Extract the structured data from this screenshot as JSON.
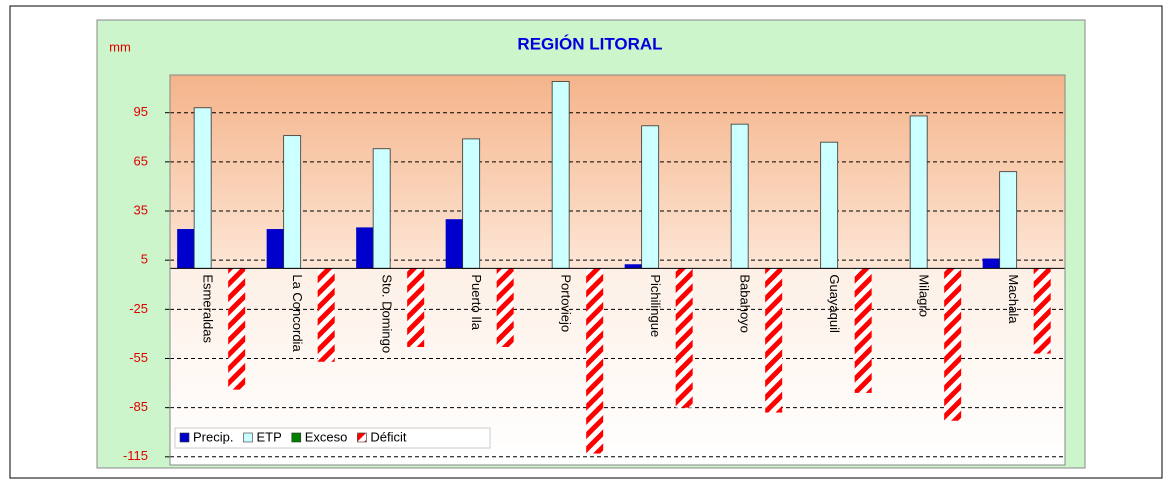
{
  "chart_data": {
    "type": "bar",
    "title": "REGIÓN LITORAL",
    "y_label": "mm",
    "categories": [
      "Esmeraldas",
      "La Concordia",
      "Sto. Domingo",
      "Puerto Ila",
      "Portoviejo",
      "Pichilingue",
      "Babahoyo",
      "Guayaquil",
      "Milagro",
      "Machala"
    ],
    "series": [
      {
        "name": "Precip.",
        "color": "#0000cc",
        "values": [
          24,
          24,
          25,
          30,
          0,
          2.5,
          0,
          0,
          0,
          6
        ]
      },
      {
        "name": "ETP",
        "color": "#ccffff",
        "values": [
          98,
          81,
          73,
          79,
          114,
          87,
          88,
          77,
          93,
          59
        ]
      },
      {
        "name": "Exceso",
        "color": "#008000",
        "values": [
          0,
          0,
          0,
          0,
          0,
          0,
          0,
          0,
          0,
          0
        ]
      },
      {
        "name": "Déficit",
        "color": "#ff0000",
        "values": [
          -74,
          -57,
          -48,
          -48,
          -113,
          -85,
          -88,
          -76,
          -93,
          -52
        ]
      }
    ],
    "ylim": [
      -120,
      118
    ],
    "yticks": [
      95,
      65,
      35,
      5,
      -25,
      -55,
      -85,
      -115
    ],
    "grid": true,
    "legend": "bottom-left"
  }
}
